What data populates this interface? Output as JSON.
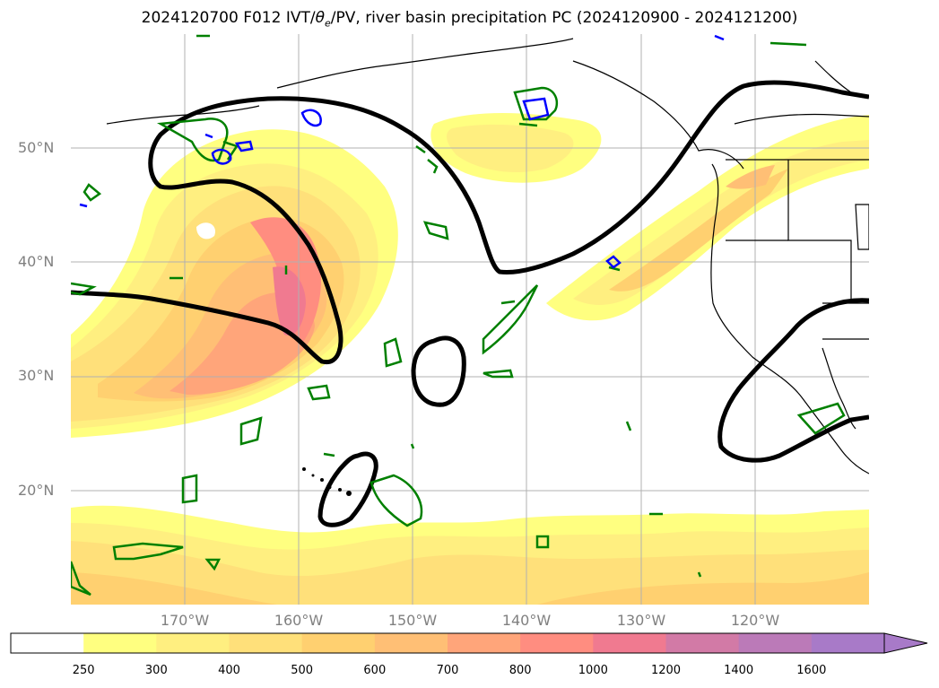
{
  "title": {
    "prefix": "2024120700 F012 IVT/",
    "theta": "θ",
    "theta_sub": "e",
    "suffix": "/PV, river basin precipitation PC (2024120900 - 2024121200)"
  },
  "colors": {
    "ivt_levels": [
      "#ffffff",
      "#ffff80",
      "#ffef80",
      "#ffe07a",
      "#ffd070",
      "#ffbf75",
      "#ffa57a",
      "#ff8d80",
      "#f07a90",
      "#d27aa6",
      "#bb7ab8",
      "#a87ac8"
    ],
    "pv_contour": "#008000",
    "theta_contour": "#0000ff",
    "basin_contour": "#000000",
    "gridline": "#b0b0b0",
    "coastline": "#000000"
  },
  "map": {
    "lat_labels": [
      "50°N",
      "40°N",
      "30°N",
      "20°N"
    ],
    "lon_labels": [
      "170°W",
      "160°W",
      "150°W",
      "140°W",
      "130°W",
      "120°W"
    ]
  },
  "colorbar": {
    "ticks": [
      "250",
      "300",
      "400",
      "500",
      "600",
      "700",
      "800",
      "1000",
      "1200",
      "1400",
      "1600"
    ],
    "extend": "max"
  }
}
